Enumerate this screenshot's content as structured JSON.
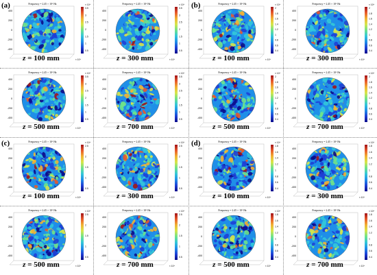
{
  "figure": {
    "panel_header": "Frequency = 2.45 × 10⁹ Hz",
    "z_prefix": "z",
    "z_unit": "mm",
    "x_exponent": "× 10⁴",
    "y_ticks": [
      "400",
      "200",
      "0",
      "-200",
      "-400"
    ],
    "colormap": [
      "#0b0b8a",
      "#1e3fd6",
      "#1f8fe8",
      "#33c7d9",
      "#6fe38a",
      "#d6e64a",
      "#f2b233",
      "#e8592b",
      "#a1141a"
    ],
    "quadrants": [
      {
        "label": "(a)",
        "cbar_ticks": [
          "3.5",
          "3",
          "2.5",
          "2",
          "1.5",
          "1",
          "0.5"
        ],
        "cbar_exp": "× 10⁴",
        "panels": [
          {
            "z": "100"
          },
          {
            "z": "300"
          },
          {
            "z": "500"
          },
          {
            "z": "700"
          }
        ]
      },
      {
        "label": "(b)",
        "cbar_ticks": [
          "2",
          "1.8",
          "1.6",
          "1.4",
          "1.2",
          "1",
          "0.8",
          "0.6",
          "0.4"
        ],
        "cbar_exp": "× 10⁴",
        "panels": [
          {
            "z": "100"
          },
          {
            "z": "300"
          },
          {
            "z": "500"
          },
          {
            "z": "700"
          }
        ]
      },
      {
        "label": "(c)",
        "cbar_ticks": [
          "2.5",
          "2",
          "1.5",
          "1",
          "0.5"
        ],
        "cbar_exp": "× 10⁴",
        "panels": [
          {
            "z": "100"
          },
          {
            "z": "300"
          },
          {
            "z": "500"
          },
          {
            "z": "700"
          }
        ]
      },
      {
        "label": "(d)",
        "cbar_ticks": [
          "1.8",
          "1.6",
          "1.4",
          "1.2",
          "1",
          "0.8",
          "0.6",
          "0.4"
        ],
        "cbar_exp": "× 10⁴",
        "panels": [
          {
            "z": "100"
          },
          {
            "z": "300"
          },
          {
            "z": "500"
          },
          {
            "z": "700"
          }
        ]
      }
    ]
  }
}
